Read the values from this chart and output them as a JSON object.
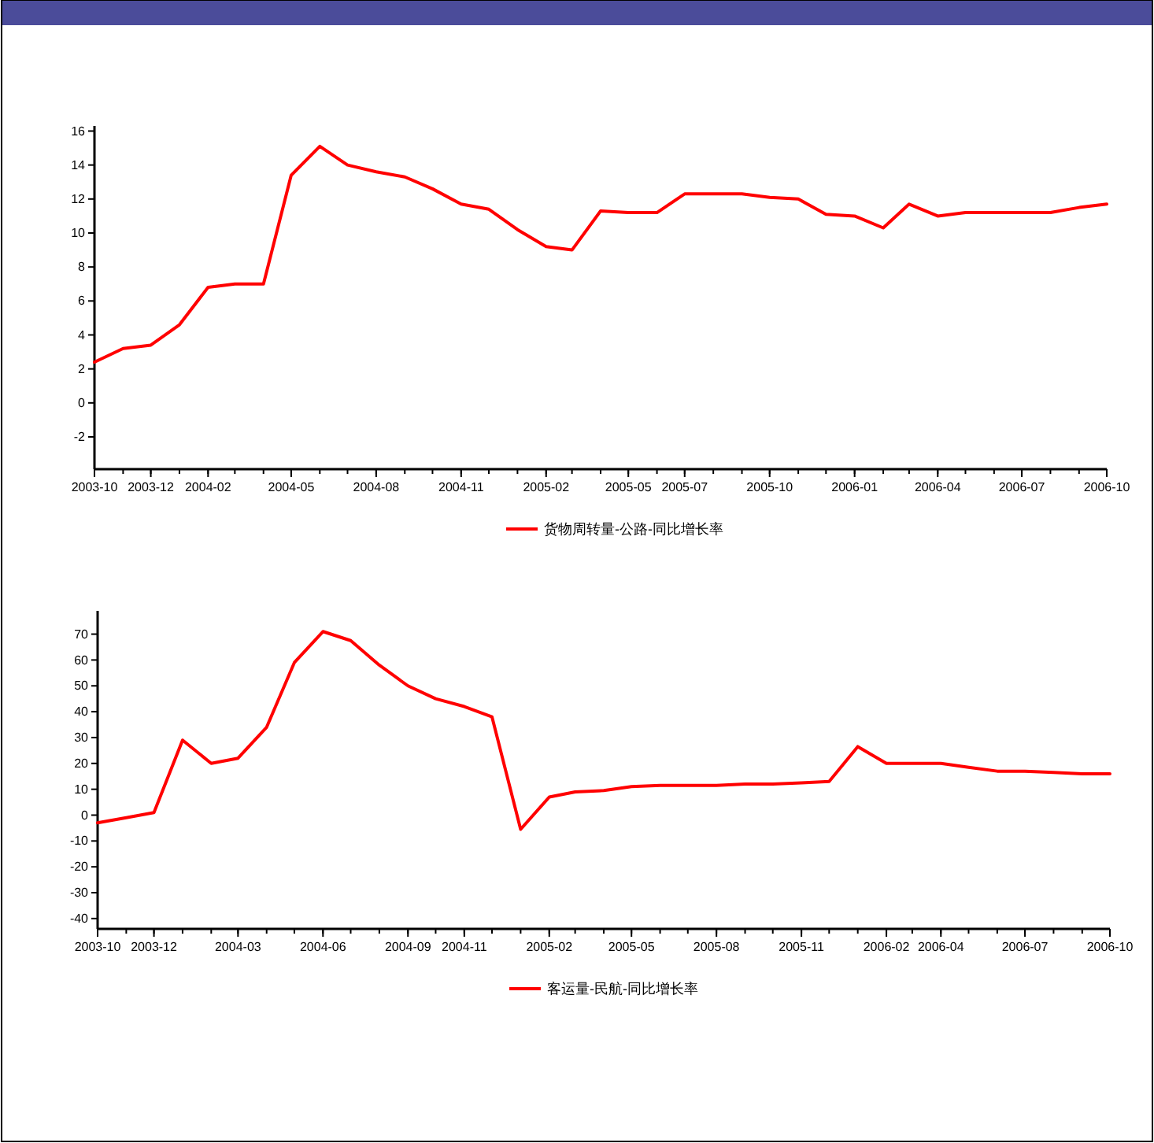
{
  "chart_data": [
    {
      "type": "line",
      "x": [
        "2003-10",
        "2003-11",
        "2003-12",
        "2004-01",
        "2004-02",
        "2004-03",
        "2004-04",
        "2004-05",
        "2004-06",
        "2004-07",
        "2004-08",
        "2004-09",
        "2004-10",
        "2004-11",
        "2004-12",
        "2005-01",
        "2005-02",
        "2005-03",
        "2005-04",
        "2005-05",
        "2005-06",
        "2005-07",
        "2005-08",
        "2005-09",
        "2005-10",
        "2005-11",
        "2005-12",
        "2006-01",
        "2006-02",
        "2006-03",
        "2006-04",
        "2006-05",
        "2006-06",
        "2006-07",
        "2006-08",
        "2006-09",
        "2006-10"
      ],
      "series": [
        {
          "name": "货物周转量-公路-同比增长率",
          "color": "#ff0000",
          "values": [
            2.4,
            3.2,
            3.4,
            4.6,
            6.8,
            7.0,
            7.0,
            13.4,
            15.1,
            14.0,
            13.6,
            13.3,
            12.6,
            11.7,
            11.4,
            10.2,
            9.2,
            9.0,
            11.3,
            11.2,
            11.2,
            12.3,
            12.3,
            12.3,
            12.1,
            12.0,
            11.1,
            11.0,
            10.3,
            11.7,
            11.0,
            11.2,
            11.2,
            11.2,
            11.2,
            11.5,
            11.7
          ]
        }
      ],
      "xlim": [
        "2003-10",
        "2006-10"
      ],
      "xticks": [
        "2003-10",
        "2003-12",
        "2004-02",
        "2004-05",
        "2004-08",
        "2004-11",
        "2005-02",
        "2005-05",
        "2005-07",
        "2005-10",
        "2006-01",
        "2006-04",
        "2006-07",
        "2006-10"
      ],
      "ylim": [
        -3.9,
        16.3
      ],
      "yticks": [
        -2,
        0,
        2,
        4,
        6,
        8,
        10,
        12,
        14,
        16
      ],
      "grid": false,
      "legend": "bottom",
      "marker": "none",
      "line_style": "solid"
    },
    {
      "type": "line",
      "x": [
        "2003-10",
        "2003-11",
        "2003-12",
        "2004-01",
        "2004-02",
        "2004-03",
        "2004-04",
        "2004-05",
        "2004-06",
        "2004-07",
        "2004-08",
        "2004-09",
        "2004-10",
        "2004-11",
        "2004-12",
        "2005-01",
        "2005-02",
        "2005-03",
        "2005-04",
        "2005-05",
        "2005-06",
        "2005-07",
        "2005-08",
        "2005-09",
        "2005-10",
        "2005-11",
        "2005-12",
        "2006-01",
        "2006-02",
        "2006-03",
        "2006-04",
        "2006-05",
        "2006-06",
        "2006-07",
        "2006-08",
        "2006-09",
        "2006-10"
      ],
      "series": [
        {
          "name": "客运量-民航-同比增长率",
          "color": "#ff0000",
          "values": [
            -3,
            -1,
            1,
            29,
            20,
            22,
            34,
            59,
            71,
            67.5,
            58,
            50,
            45,
            42,
            38,
            -5.5,
            7,
            9,
            9.5,
            11,
            11.5,
            11.5,
            11.5,
            12,
            12,
            12.5,
            13,
            26.5,
            20,
            20,
            20,
            18.5,
            17,
            17,
            16.5,
            16,
            16
          ]
        }
      ],
      "xlim": [
        "2003-10",
        "2006-10"
      ],
      "xticks": [
        "2003-10",
        "2003-12",
        "2004-03",
        "2004-06",
        "2004-09",
        "2004-11",
        "2005-02",
        "2005-05",
        "2005-08",
        "2005-11",
        "2006-02",
        "2006-04",
        "2006-07",
        "2006-10"
      ],
      "ylim": [
        -44,
        79
      ],
      "yticks": [
        -40,
        -30,
        -20,
        -10,
        0,
        10,
        20,
        30,
        40,
        50,
        60,
        70
      ],
      "grid": false,
      "legend": "bottom",
      "marker": "none",
      "line_style": "solid"
    }
  ]
}
